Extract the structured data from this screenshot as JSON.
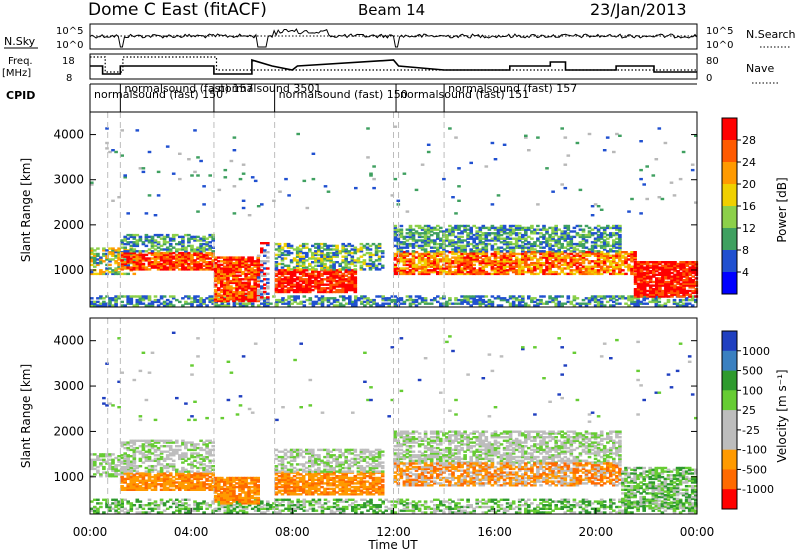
{
  "header": {
    "station": "Dome C East (fitACF)",
    "beam": "Beam 14",
    "date": "23/Jan/2013"
  },
  "status_panels": {
    "nsky_label": "N.Sky",
    "nsearch_label": "N.Search",
    "noise_ticks": [
      "10^5",
      "10^0"
    ],
    "freq_label_1": "Freq.",
    "freq_label_2": "[MHz]",
    "freq_ticks": [
      "18",
      "8"
    ],
    "nave_label": "Nave",
    "nave_ticks": [
      "80",
      "0"
    ],
    "cpid_label": "CPID"
  },
  "cpid_segments": [
    {
      "label": "normalsound (fast) 150",
      "start_h": 0.0,
      "end_h": 1.2
    },
    {
      "label": "normalsound (fast) 157",
      "start_h": 1.2,
      "end_h": 4.9
    },
    {
      "label": "normalsound 3501",
      "start_h": 4.9,
      "end_h": 7.3
    },
    {
      "label": "normalsound (fast) 150",
      "start_h": 7.3,
      "end_h": 12.1
    },
    {
      "label": "normalsound (fast) 151",
      "start_h": 12.1,
      "end_h": 14.0
    },
    {
      "label": "normalsound (fast) 157",
      "start_h": 14.0,
      "end_h": 24.0
    }
  ],
  "cpid_rows": [
    {
      "label": "normalsound (fast) 150",
      "row": 1
    },
    {
      "label": "normalsound (fast) 157",
      "row": 0
    },
    {
      "label": "normalsound 3501",
      "row": 0
    },
    {
      "label": "normalsound (fast) 150",
      "row": 1
    },
    {
      "label": "normalsound (fast) 151",
      "row": 1
    },
    {
      "label": "normalsound (fast) 157",
      "row": 0
    }
  ],
  "chart_data": [
    {
      "type": "heatmap",
      "panel": "power",
      "xlabel": "",
      "ylabel": "Slant Range [km]",
      "xlim_hours": [
        0,
        24
      ],
      "ylim_km": [
        180,
        4500
      ],
      "y_ticks": [
        1000,
        2000,
        3000,
        4000
      ],
      "colorbar_label": "Power [dB]",
      "colorbar_ticks": [
        "28",
        "24",
        "20",
        "16",
        "12",
        "8",
        "4"
      ],
      "colorbar_colors": [
        "#ff0000",
        "#ff5a00",
        "#ff9a00",
        "#f0d000",
        "#8cd04a",
        "#3fa060",
        "#2050d0",
        "#0000ff"
      ],
      "gray_scatter_color": "#b8b8b8"
    },
    {
      "type": "heatmap",
      "panel": "velocity",
      "xlabel": "Time UT",
      "ylabel": "Slant Range [km]",
      "xlim_hours": [
        0,
        24
      ],
      "ylim_km": [
        180,
        4500
      ],
      "y_ticks": [
        1000,
        2000,
        3000,
        4000
      ],
      "x_ticks": [
        "00:00",
        "04:00",
        "08:00",
        "12:00",
        "16:00",
        "20:00",
        "00:00"
      ],
      "colorbar_label": "Velocity [m s⁻¹]",
      "colorbar_ticks": [
        "1000",
        "500",
        "100",
        "25",
        "-25",
        "-100",
        "-500",
        "-1000"
      ],
      "colorbar_colors": [
        "#2040c0",
        "#3a80c0",
        "#2e9a2e",
        "#66cc33",
        "#bdbdbd",
        "#bdbdbd",
        "#ff9a00",
        "#ff6a00",
        "#ff0000"
      ]
    }
  ],
  "colors": {
    "axis": "#000000",
    "grid_dash": "#bdbdbd",
    "background": "#ffffff"
  }
}
